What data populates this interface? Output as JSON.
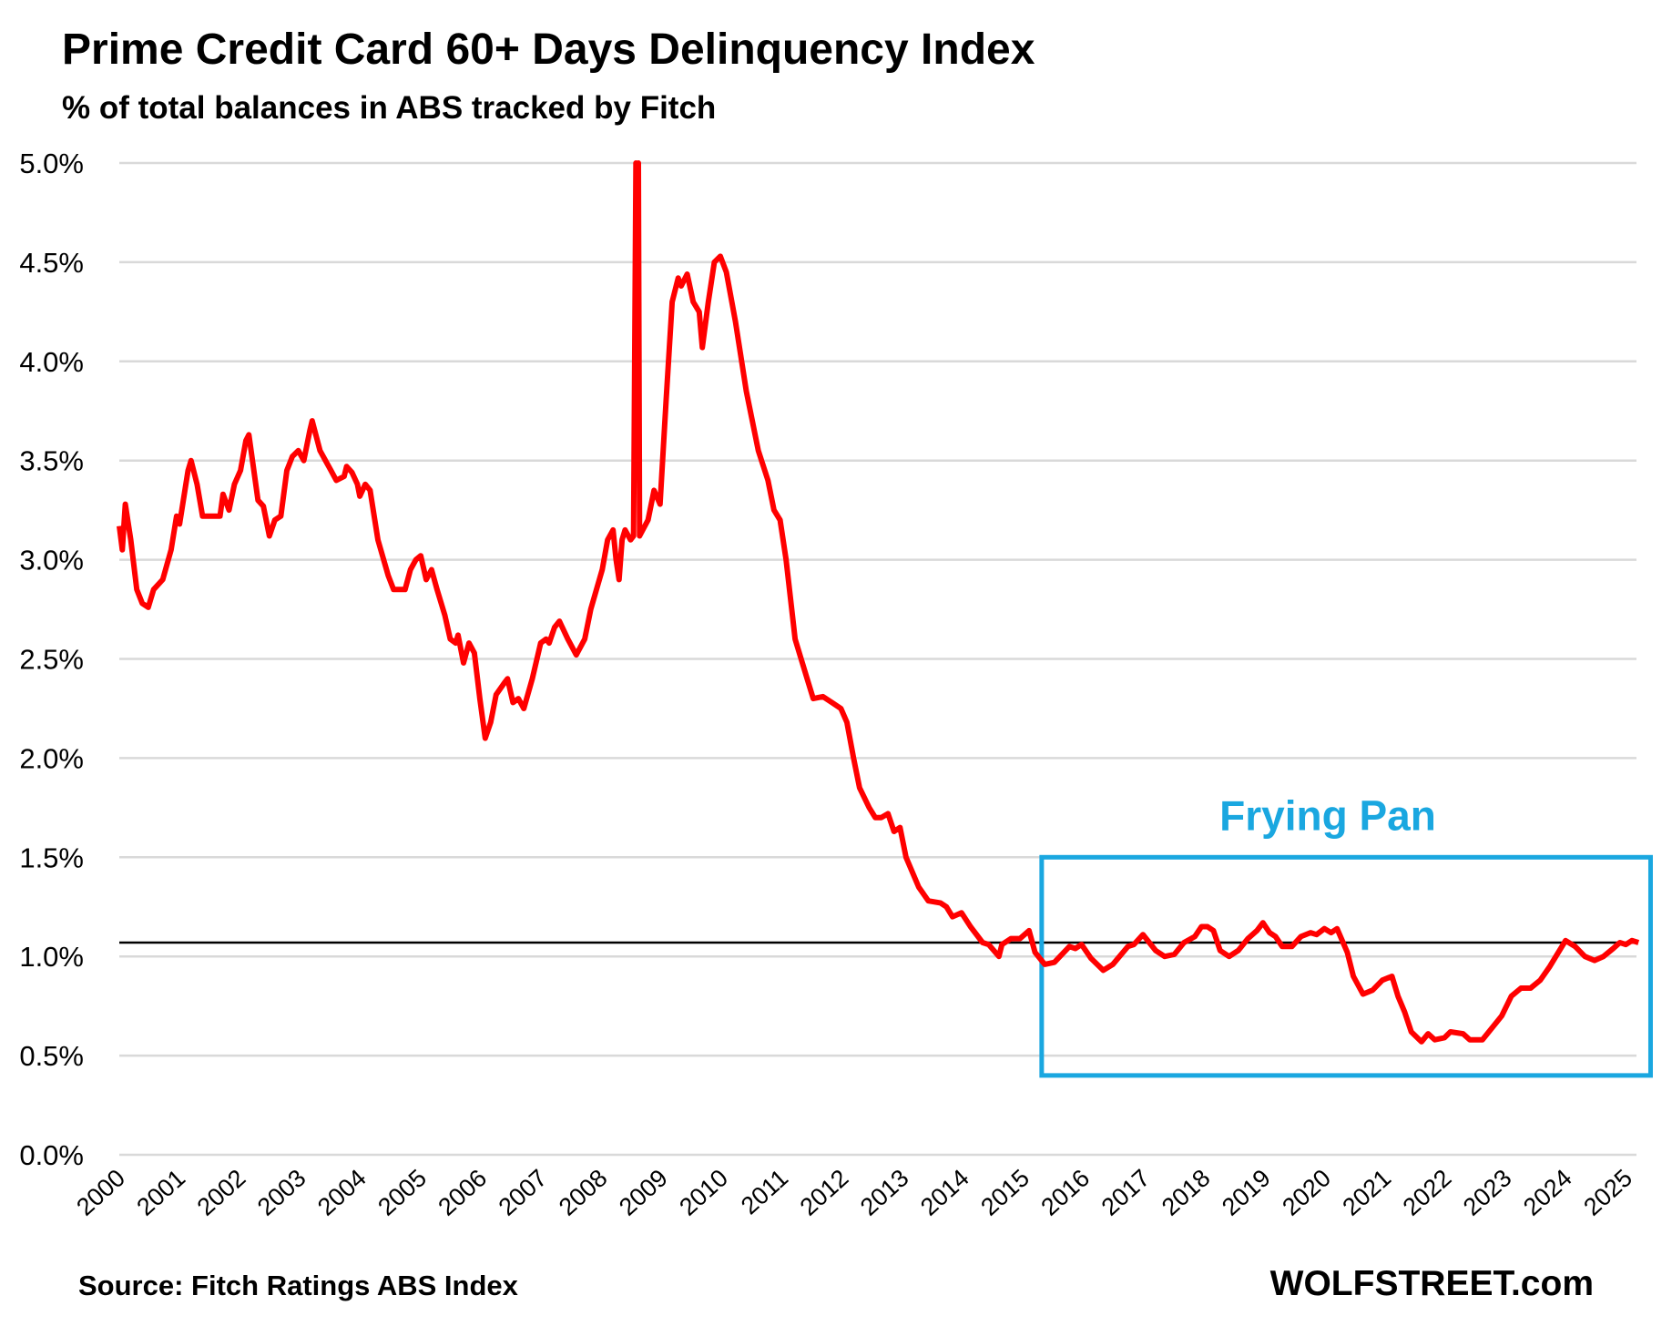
{
  "chart_data": {
    "type": "line",
    "title": "Prime Credit Card 60+ Days Delinquency Index",
    "subtitle": "% of total balances in ABS tracked by Fitch",
    "source": "Source: Fitch Ratings ABS Index",
    "brand": "WOLFSTREET.com",
    "xlabel": "",
    "ylabel": "",
    "ylim": [
      0,
      5
    ],
    "xlim": [
      2000,
      2025.2
    ],
    "y_ticks": [
      "0.0%",
      "0.5%",
      "1.0%",
      "1.5%",
      "2.0%",
      "2.5%",
      "3.0%",
      "3.5%",
      "4.0%",
      "4.5%",
      "5.0%"
    ],
    "y_tick_values": [
      0,
      0.5,
      1,
      1.5,
      2,
      2.5,
      3,
      3.5,
      4,
      4.5,
      5
    ],
    "x_ticks": [
      "2000",
      "2001",
      "2002",
      "2003",
      "2004",
      "2005",
      "2006",
      "2007",
      "2008",
      "2009",
      "2010",
      "2011",
      "2012",
      "2013",
      "2014",
      "2015",
      "2016",
      "2017",
      "2018",
      "2019",
      "2020",
      "2021",
      "2022",
      "2023",
      "2024",
      "2025"
    ],
    "grid": true,
    "reference_line": {
      "value": 1.07,
      "color": "#000000"
    },
    "annotation": {
      "text": "Frying Pan",
      "x_range": [
        2015.3,
        2025.4
      ],
      "y_range": [
        0.4,
        1.5
      ],
      "color": "#1AA7E0"
    },
    "series": [
      {
        "name": "Prime Credit Card 60+ Days Delinquency Index",
        "color": "#FF0000",
        "x": [
          2000.0,
          2000.05,
          2000.1,
          2000.19,
          2000.29,
          2000.38,
          2000.48,
          2000.57,
          2000.72,
          2000.86,
          2000.95,
          2001.0,
          2001.14,
          2001.19,
          2001.29,
          2001.38,
          2001.53,
          2001.67,
          2001.72,
          2001.82,
          2001.91,
          2002.01,
          2002.1,
          2002.15,
          2002.3,
          2002.39,
          2002.49,
          2002.58,
          2002.68,
          2002.78,
          2002.87,
          2002.97,
          2003.06,
          2003.16,
          2003.2,
          2003.33,
          2003.51,
          2003.6,
          2003.73,
          2003.77,
          2003.86,
          2003.95,
          2003.99,
          2004.08,
          2004.16,
          2004.29,
          2004.46,
          2004.55,
          2004.74,
          2004.83,
          2004.92,
          2005.0,
          2005.09,
          2005.18,
          2005.27,
          2005.4,
          2005.49,
          2005.58,
          2005.62,
          2005.71,
          2005.8,
          2005.89,
          2005.98,
          2006.07,
          2006.16,
          2006.25,
          2006.39,
          2006.44,
          2006.53,
          2006.62,
          2006.71,
          2006.85,
          2006.99,
          2007.08,
          2007.13,
          2007.22,
          2007.3,
          2007.44,
          2007.58,
          2007.72,
          2007.82,
          2008.01,
          2008.1,
          2008.19,
          2008.24,
          2008.29,
          2008.34,
          2008.39,
          2008.48,
          2008.53,
          2008.57,
          2008.59,
          2008.61,
          2008.63,
          2008.77,
          2008.87,
          2008.97,
          2009.07,
          2009.17,
          2009.27,
          2009.32,
          2009.42,
          2009.52,
          2009.62,
          2009.67,
          2009.77,
          2009.87,
          2009.97,
          2010.07,
          2010.22,
          2010.4,
          2010.5,
          2010.6,
          2010.76,
          2010.86,
          2010.96,
          2011.06,
          2011.21,
          2011.41,
          2011.51,
          2011.67,
          2011.82,
          2011.97,
          2012.07,
          2012.18,
          2012.28,
          2012.44,
          2012.54,
          2012.64,
          2012.75,
          2012.85,
          2012.95,
          2013.05,
          2013.26,
          2013.42,
          2013.62,
          2013.72,
          2013.82,
          2013.97,
          2014.12,
          2014.32,
          2014.42,
          2014.59,
          2014.64,
          2014.79,
          2014.94,
          2015.09,
          2015.19,
          2015.35,
          2015.51,
          2015.76,
          2015.86,
          2015.96,
          2016.12,
          2016.32,
          2016.48,
          2016.73,
          2016.83,
          2016.98,
          2017.19,
          2017.34,
          2017.5,
          2017.66,
          2017.84,
          2017.95,
          2018.05,
          2018.15,
          2018.26,
          2018.41,
          2018.56,
          2018.72,
          2018.87,
          2018.97,
          2019.08,
          2019.18,
          2019.29,
          2019.45,
          2019.6,
          2019.76,
          2019.86,
          2019.99,
          2020.1,
          2020.2,
          2020.37,
          2020.47,
          2020.63,
          2020.79,
          2020.95,
          2021.11,
          2021.21,
          2021.32,
          2021.43,
          2021.6,
          2021.71,
          2021.82,
          2021.98,
          2022.08,
          2022.29,
          2022.4,
          2022.61,
          2022.77,
          2022.93,
          2023.09,
          2023.25,
          2023.41,
          2023.57,
          2023.73,
          2023.83,
          2023.99,
          2024.15,
          2024.31,
          2024.47,
          2024.62,
          2024.78,
          2024.89,
          2024.99,
          2025.09,
          2025.2
        ],
        "y": [
          3.17,
          3.05,
          3.28,
          3.1,
          2.85,
          2.78,
          2.76,
          2.85,
          2.9,
          3.05,
          3.22,
          3.18,
          3.45,
          3.5,
          3.38,
          3.22,
          3.22,
          3.22,
          3.33,
          3.25,
          3.38,
          3.45,
          3.6,
          3.63,
          3.3,
          3.27,
          3.12,
          3.2,
          3.22,
          3.45,
          3.52,
          3.55,
          3.5,
          3.65,
          3.7,
          3.55,
          3.45,
          3.4,
          3.42,
          3.47,
          3.44,
          3.38,
          3.32,
          3.38,
          3.35,
          3.1,
          2.92,
          2.85,
          2.85,
          2.95,
          3.0,
          3.02,
          2.9,
          2.95,
          2.85,
          2.72,
          2.6,
          2.58,
          2.62,
          2.48,
          2.58,
          2.53,
          2.3,
          2.1,
          2.18,
          2.32,
          2.38,
          2.4,
          2.28,
          2.3,
          2.25,
          2.4,
          2.58,
          2.6,
          2.58,
          2.66,
          2.69,
          2.6,
          2.52,
          2.6,
          2.75,
          2.95,
          3.1,
          3.15,
          3.0,
          2.9,
          3.1,
          3.15,
          3.1,
          3.12,
          5.0,
          3.5,
          5.0,
          3.12,
          3.2,
          3.35,
          3.28,
          3.8,
          4.3,
          4.42,
          4.38,
          4.44,
          4.3,
          4.25,
          4.07,
          4.3,
          4.5,
          4.53,
          4.45,
          4.2,
          3.85,
          3.7,
          3.55,
          3.4,
          3.25,
          3.2,
          3.0,
          2.6,
          2.4,
          2.3,
          2.31,
          2.28,
          2.25,
          2.18,
          2.0,
          1.85,
          1.75,
          1.7,
          1.7,
          1.72,
          1.63,
          1.65,
          1.5,
          1.35,
          1.28,
          1.27,
          1.25,
          1.2,
          1.22,
          1.15,
          1.07,
          1.06,
          1.0,
          1.06,
          1.09,
          1.09,
          1.13,
          1.02,
          0.96,
          0.97,
          1.05,
          1.04,
          1.06,
          0.99,
          0.93,
          0.96,
          1.05,
          1.06,
          1.11,
          1.03,
          1.0,
          1.01,
          1.07,
          1.1,
          1.15,
          1.15,
          1.13,
          1.03,
          1.0,
          1.03,
          1.09,
          1.13,
          1.17,
          1.12,
          1.1,
          1.05,
          1.05,
          1.1,
          1.12,
          1.11,
          1.14,
          1.12,
          1.14,
          1.02,
          0.9,
          0.81,
          0.83,
          0.88,
          0.9,
          0.8,
          0.72,
          0.62,
          0.57,
          0.61,
          0.58,
          0.59,
          0.62,
          0.61,
          0.58,
          0.58,
          0.64,
          0.7,
          0.8,
          0.84,
          0.84,
          0.88,
          0.95,
          1.0,
          1.08,
          1.05,
          1.0,
          0.98,
          1.0,
          1.04,
          1.07,
          1.06,
          1.08,
          1.07
        ]
      }
    ]
  }
}
